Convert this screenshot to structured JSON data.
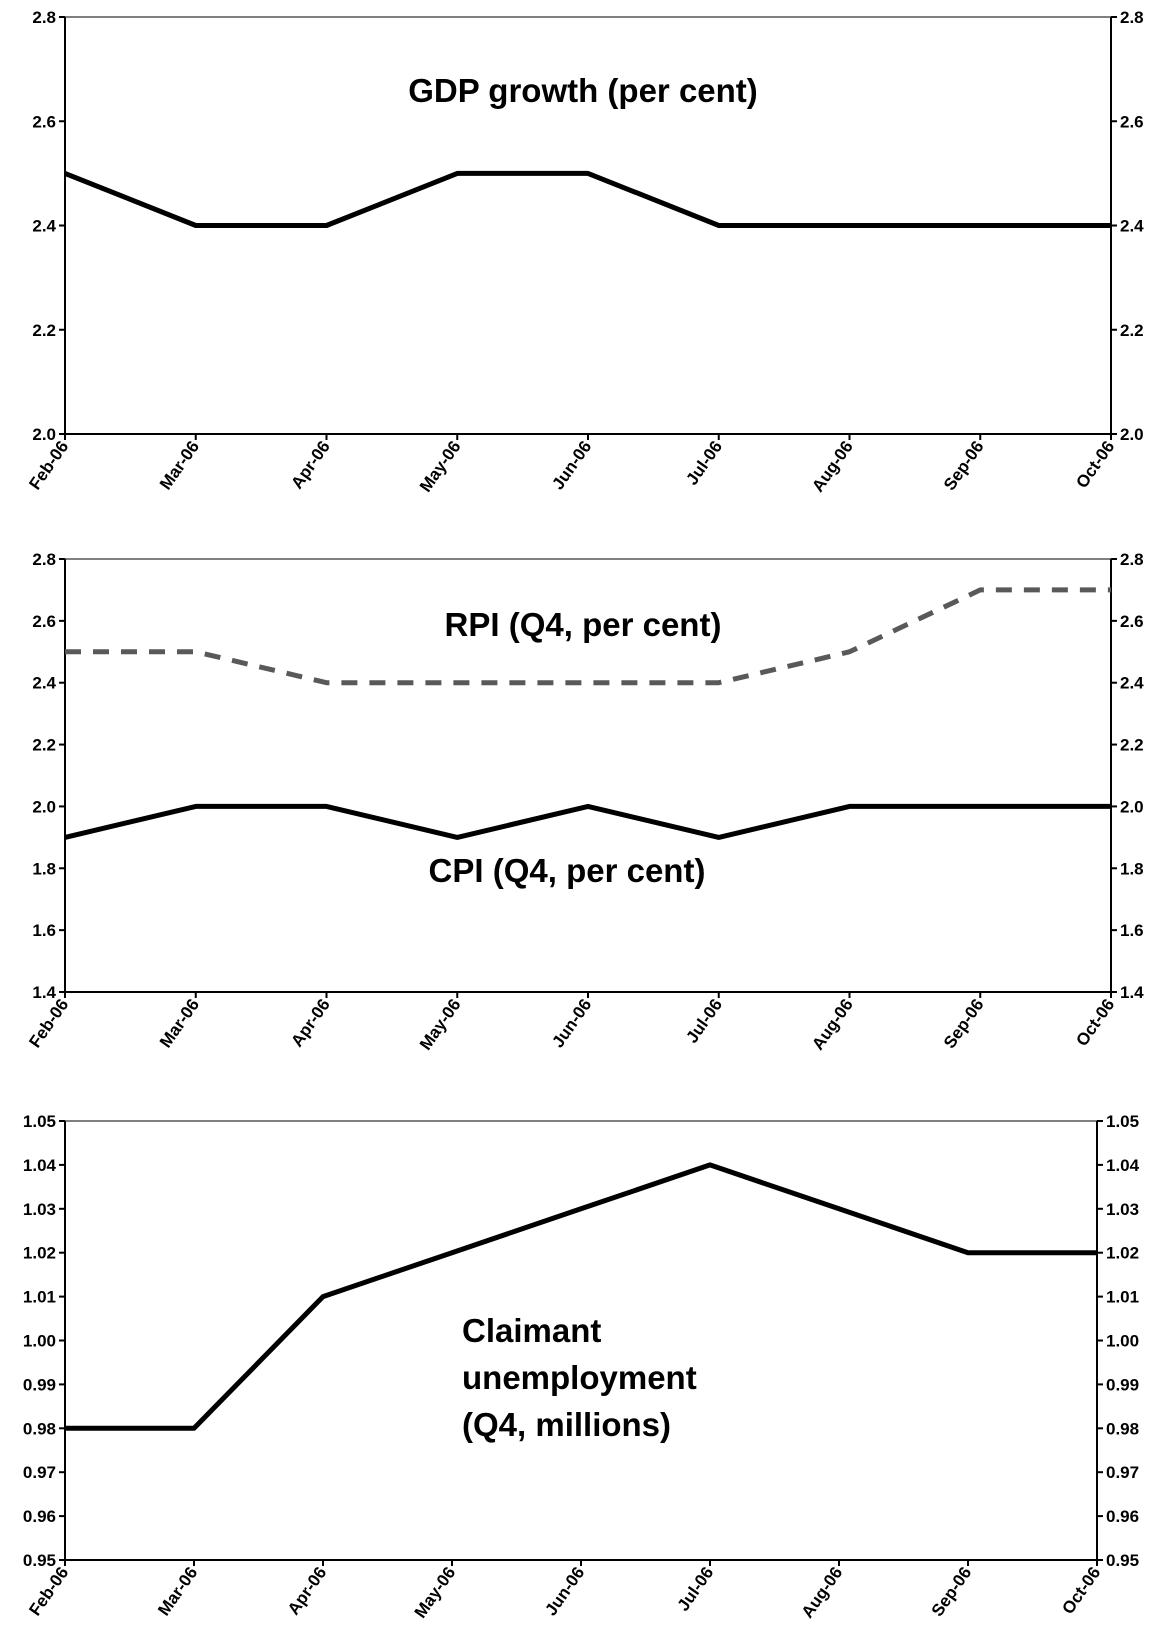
{
  "chart_data": [
    {
      "type": "line",
      "categories": [
        "Feb-06",
        "Mar-06",
        "Apr-06",
        "May-06",
        "Jun-06",
        "Jul-06",
        "Aug-06",
        "Sep-06",
        "Oct-06"
      ],
      "series": [
        {
          "values": [
            2.5,
            2.4,
            2.4,
            2.5,
            2.5,
            2.4,
            2.4,
            2.4,
            2.4
          ],
          "style": "solid",
          "color": "#000000"
        }
      ],
      "annotations": [
        {
          "text": "GDP growth (per cent)"
        }
      ],
      "ylim": [
        2.0,
        2.8
      ],
      "yticks": [
        "2.0",
        "2.2",
        "2.4",
        "2.6",
        "2.8"
      ],
      "secondary_y_axis": true,
      "grid": false
    },
    {
      "type": "line",
      "categories": [
        "Feb-06",
        "Mar-06",
        "Apr-06",
        "May-06",
        "Jun-06",
        "Jul-06",
        "Aug-06",
        "Sep-06",
        "Oct-06"
      ],
      "series": [
        {
          "values": [
            2.5,
            2.5,
            2.4,
            2.4,
            2.4,
            2.4,
            2.5,
            2.7,
            2.7
          ],
          "style": "dashed",
          "color": "#595959"
        },
        {
          "values": [
            1.9,
            2.0,
            2.0,
            1.9,
            2.0,
            1.9,
            2.0,
            2.0,
            2.0
          ],
          "style": "solid",
          "color": "#000000"
        }
      ],
      "annotations": [
        {
          "text": "RPI (Q4, per cent)"
        },
        {
          "text": "CPI (Q4, per cent)"
        }
      ],
      "ylim": [
        1.4,
        2.8
      ],
      "yticks": [
        "1.4",
        "1.6",
        "1.8",
        "2.0",
        "2.2",
        "2.4",
        "2.6",
        "2.8"
      ],
      "secondary_y_axis": true,
      "grid": false
    },
    {
      "type": "line",
      "categories": [
        "Feb-06",
        "Mar-06",
        "Apr-06",
        "May-06",
        "Jun-06",
        "Jul-06",
        "Aug-06",
        "Sep-06",
        "Oct-06"
      ],
      "series": [
        {
          "values": [
            0.98,
            0.98,
            1.01,
            1.02,
            1.03,
            1.04,
            1.03,
            1.02,
            1.02
          ],
          "style": "solid",
          "color": "#000000"
        }
      ],
      "annotations": [
        {
          "text": "Claimant"
        },
        {
          "text": "unemployment"
        },
        {
          "text": "(Q4, millions)"
        }
      ],
      "ylim": [
        0.95,
        1.05
      ],
      "yticks": [
        "0.95",
        "0.96",
        "0.97",
        "0.98",
        "0.99",
        "1.00",
        "1.01",
        "1.02",
        "1.03",
        "1.04",
        "1.05"
      ],
      "secondary_y_axis": true,
      "grid": false
    }
  ]
}
